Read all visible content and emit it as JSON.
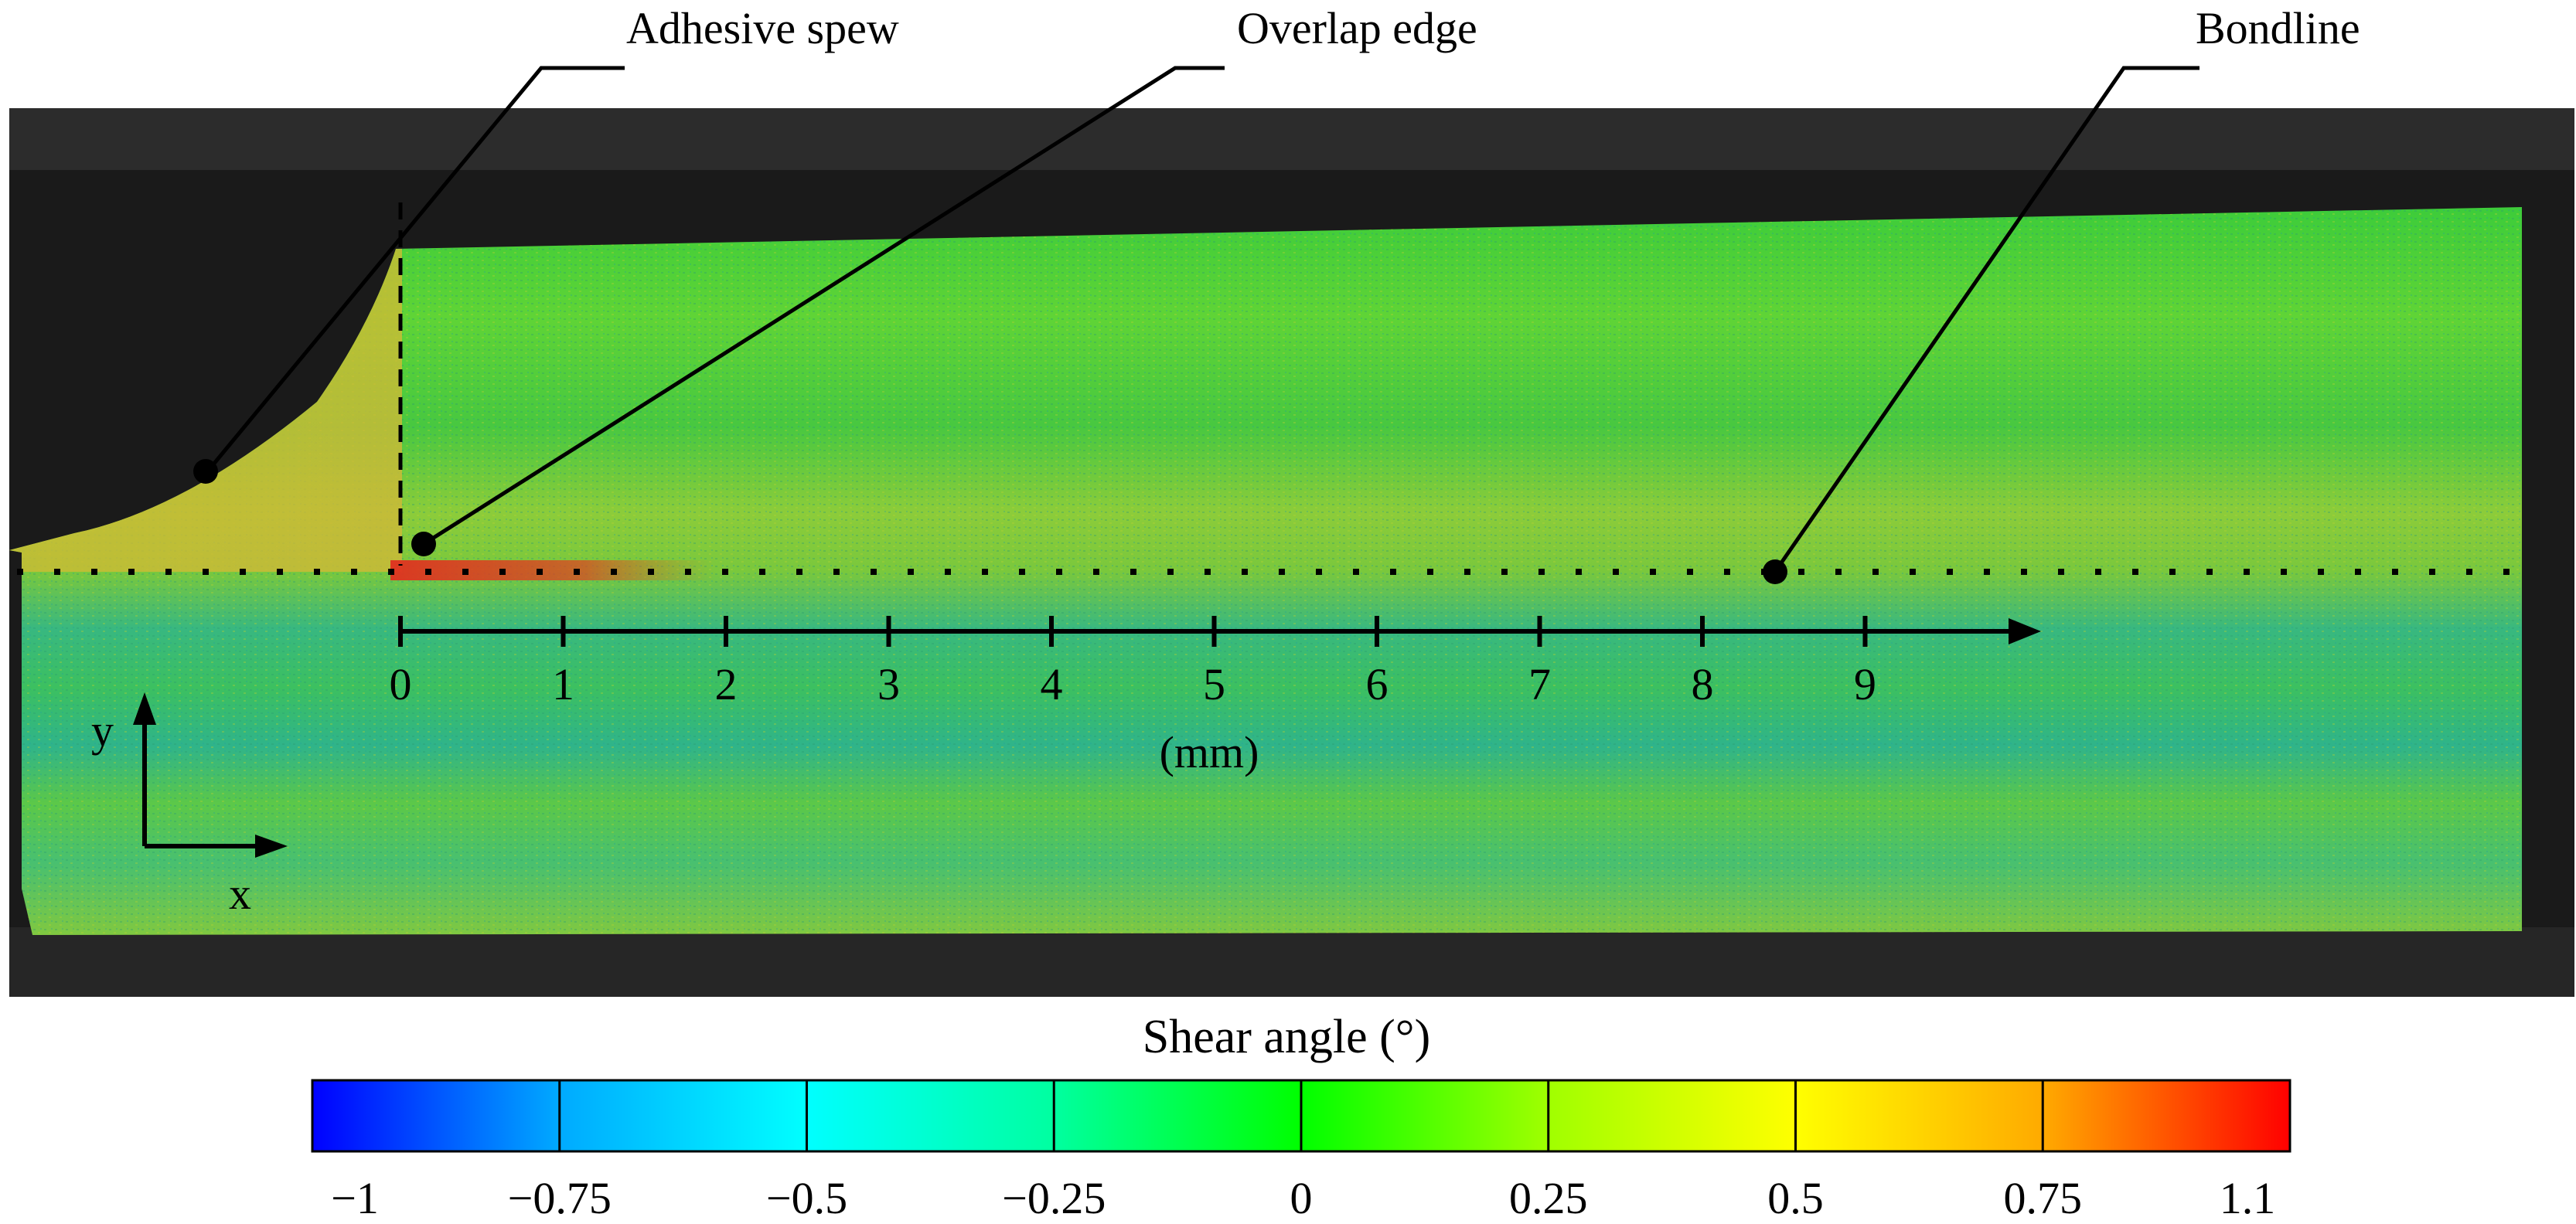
{
  "callouts": {
    "adhesive_spew": "Adhesive spew",
    "overlap_edge": "Overlap edge",
    "bondline": "Bondline"
  },
  "axis": {
    "ticks": [
      "0",
      "1",
      "2",
      "3",
      "4",
      "5",
      "6",
      "7",
      "8",
      "9"
    ],
    "unit": "(mm)"
  },
  "coords": {
    "y": "y",
    "x": "x"
  },
  "colorbar": {
    "title": "Shear angle (°)",
    "min": -1,
    "max": 1.1,
    "tick_values": [
      -1,
      -0.75,
      -0.5,
      -0.25,
      0,
      0.25,
      0.5,
      0.75,
      1.1
    ],
    "tick_labels": [
      "−1",
      "−0.75",
      "−0.5",
      "−0.25",
      "0",
      "0.25",
      "0.5",
      "0.75",
      "1.1"
    ],
    "colors": [
      "#0000ff",
      "#00aaff",
      "#00ffff",
      "#00ffa0",
      "#00ff00",
      "#a0ff00",
      "#ffff00",
      "#ffaa00",
      "#ff0000"
    ]
  }
}
